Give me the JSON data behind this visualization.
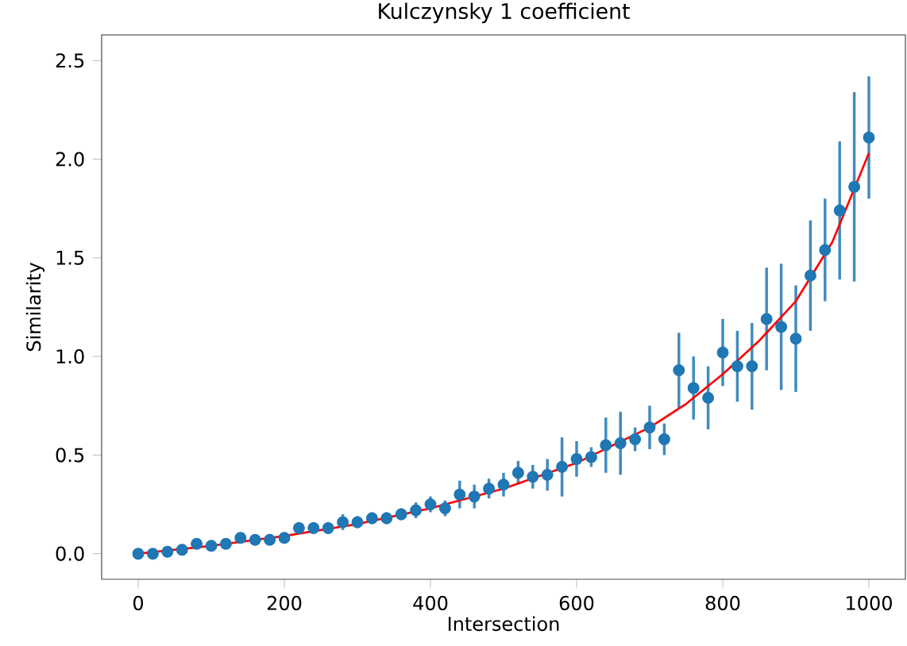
{
  "chart_data": {
    "type": "scatter",
    "title": "Kulczynsky 1 coefficient",
    "xlabel": "Intersection",
    "ylabel": "Similarity",
    "xlim": [
      -50,
      1050
    ],
    "ylim": [
      -0.13,
      2.63
    ],
    "xticks": [
      0,
      200,
      400,
      600,
      800,
      1000
    ],
    "yticks": [
      {
        "value": 0,
        "label": "0.0"
      },
      {
        "value": 0.5,
        "label": "0.5"
      },
      {
        "value": 1,
        "label": "1.0"
      },
      {
        "value": 1.5,
        "label": "1.5"
      },
      {
        "value": 2,
        "label": "2.0"
      },
      {
        "value": 2.5,
        "label": "2.5"
      }
    ],
    "grid": false,
    "series": [
      {
        "color": "#1f77b4",
        "marker": "circle",
        "x": [
          0,
          20,
          40,
          60,
          80,
          100,
          120,
          140,
          160,
          180,
          200,
          220,
          240,
          260,
          280,
          300,
          320,
          340,
          360,
          380,
          400,
          420,
          440,
          460,
          480,
          500,
          520,
          540,
          560,
          580,
          600,
          620,
          640,
          660,
          680,
          700,
          720,
          740,
          760,
          780,
          800,
          820,
          840,
          860,
          880,
          900,
          920,
          940,
          960,
          980,
          1000
        ],
        "values": [
          0.0,
          0.0,
          0.01,
          0.02,
          0.05,
          0.04,
          0.05,
          0.08,
          0.07,
          0.07,
          0.08,
          0.13,
          0.13,
          0.13,
          0.16,
          0.16,
          0.18,
          0.18,
          0.2,
          0.22,
          0.25,
          0.23,
          0.3,
          0.29,
          0.33,
          0.35,
          0.41,
          0.39,
          0.4,
          0.44,
          0.48,
          0.49,
          0.55,
          0.56,
          0.58,
          0.64,
          0.58,
          0.93,
          0.84,
          0.79,
          1.02,
          0.95,
          0.95,
          1.19,
          1.15,
          1.09,
          1.41,
          1.54,
          1.74,
          1.86,
          2.11
        ],
        "errors": [
          0.01,
          0.01,
          0.01,
          0.01,
          0.02,
          0.02,
          0.02,
          0.02,
          0.02,
          0.02,
          0.02,
          0.03,
          0.03,
          0.03,
          0.04,
          0.03,
          0.03,
          0.03,
          0.03,
          0.04,
          0.04,
          0.04,
          0.07,
          0.06,
          0.05,
          0.06,
          0.06,
          0.06,
          0.08,
          0.15,
          0.09,
          0.05,
          0.14,
          0.16,
          0.06,
          0.11,
          0.08,
          0.19,
          0.16,
          0.16,
          0.17,
          0.18,
          0.22,
          0.26,
          0.32,
          0.27,
          0.28,
          0.26,
          0.35,
          0.48,
          0.31
        ]
      },
      {
        "type": "line",
        "color": "#ff0000",
        "marker": "none",
        "x": [
          0,
          100,
          200,
          300,
          400,
          500,
          600,
          700,
          750,
          800,
          850,
          900,
          950,
          1000
        ],
        "values": [
          0.0,
          0.04,
          0.09,
          0.15,
          0.23,
          0.33,
          0.46,
          0.64,
          0.76,
          0.91,
          1.08,
          1.28,
          1.58,
          2.03
        ]
      }
    ]
  }
}
